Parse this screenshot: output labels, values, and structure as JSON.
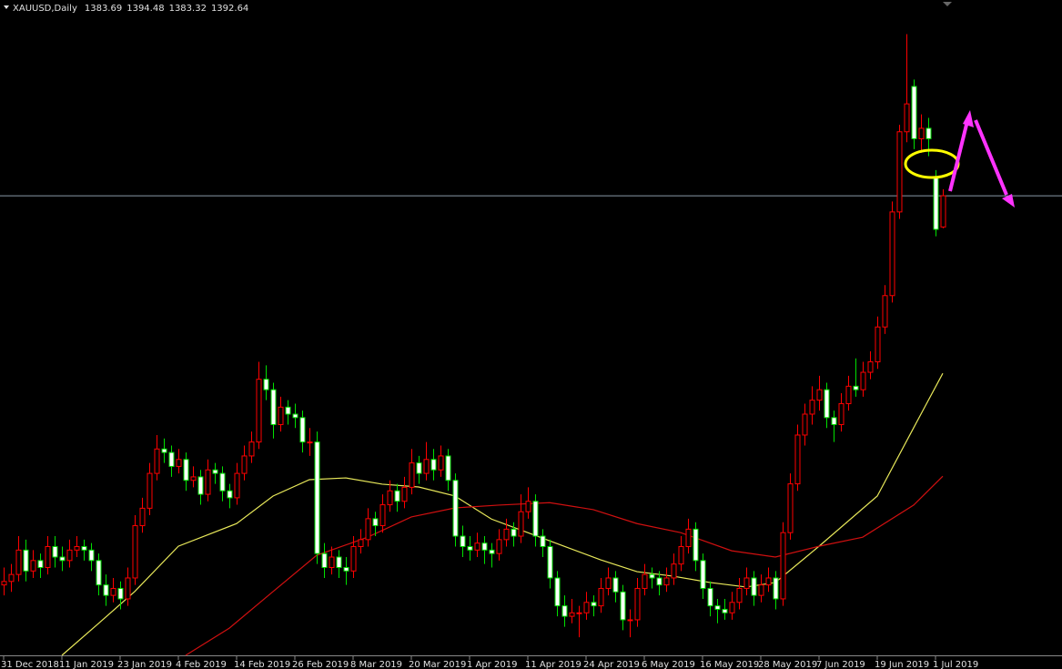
{
  "chart_data": {
    "type": "candlestick",
    "title": "XAUUSD,Daily",
    "candles": [
      [
        1281,
        1286,
        1278,
        1282
      ],
      [
        1282,
        1287,
        1279,
        1284
      ],
      [
        1284,
        1295,
        1282,
        1291
      ],
      [
        1291,
        1294,
        1282,
        1285
      ],
      [
        1285,
        1291,
        1283,
        1288
      ],
      [
        1288,
        1290,
        1283,
        1286
      ],
      [
        1286,
        1295,
        1284,
        1292
      ],
      [
        1292,
        1295,
        1286,
        1289
      ],
      [
        1289,
        1292,
        1285,
        1288
      ],
      [
        1288,
        1294,
        1286,
        1291
      ],
      [
        1291,
        1295,
        1289,
        1292
      ],
      [
        1292,
        1294,
        1288,
        1291
      ],
      [
        1291,
        1293,
        1285,
        1288
      ],
      [
        1288,
        1290,
        1278,
        1281
      ],
      [
        1281,
        1284,
        1275,
        1278
      ],
      [
        1278,
        1283,
        1276,
        1280
      ],
      [
        1280,
        1282,
        1274,
        1277
      ],
      [
        1277,
        1286,
        1275,
        1283
      ],
      [
        1283,
        1301,
        1281,
        1298
      ],
      [
        1298,
        1306,
        1296,
        1303
      ],
      [
        1303,
        1316,
        1301,
        1313
      ],
      [
        1313,
        1324,
        1311,
        1320
      ],
      [
        1320,
        1323,
        1316,
        1319
      ],
      [
        1319,
        1321,
        1312,
        1315
      ],
      [
        1315,
        1320,
        1313,
        1317
      ],
      [
        1317,
        1319,
        1308,
        1311
      ],
      [
        1311,
        1315,
        1309,
        1312
      ],
      [
        1312,
        1314,
        1304,
        1307
      ],
      [
        1307,
        1317,
        1305,
        1314
      ],
      [
        1314,
        1316,
        1310,
        1313
      ],
      [
        1313,
        1315,
        1305,
        1308
      ],
      [
        1308,
        1310,
        1303,
        1306
      ],
      [
        1306,
        1316,
        1304,
        1313
      ],
      [
        1313,
        1321,
        1311,
        1318
      ],
      [
        1318,
        1325,
        1316,
        1322
      ],
      [
        1322,
        1345,
        1320,
        1340
      ],
      [
        1340,
        1344,
        1334,
        1337
      ],
      [
        1337,
        1339,
        1323,
        1327
      ],
      [
        1327,
        1335,
        1325,
        1332
      ],
      [
        1332,
        1334,
        1327,
        1330
      ],
      [
        1330,
        1333,
        1326,
        1329
      ],
      [
        1329,
        1331,
        1319,
        1322
      ],
      [
        1322,
        1326,
        1318,
        1322
      ],
      [
        1322,
        1325,
        1287,
        1290
      ],
      [
        1290,
        1293,
        1283,
        1286
      ],
      [
        1286,
        1292,
        1284,
        1289
      ],
      [
        1289,
        1291,
        1283,
        1286
      ],
      [
        1286,
        1289,
        1281,
        1285
      ],
      [
        1285,
        1295,
        1283,
        1292
      ],
      [
        1292,
        1297,
        1290,
        1294
      ],
      [
        1294,
        1303,
        1292,
        1300
      ],
      [
        1300,
        1302,
        1295,
        1298
      ],
      [
        1298,
        1307,
        1296,
        1304
      ],
      [
        1304,
        1311,
        1302,
        1308
      ],
      [
        1308,
        1310,
        1302,
        1305
      ],
      [
        1305,
        1312,
        1303,
        1309
      ],
      [
        1309,
        1320,
        1307,
        1316
      ],
      [
        1316,
        1318,
        1310,
        1313
      ],
      [
        1313,
        1322,
        1311,
        1317
      ],
      [
        1317,
        1320,
        1311,
        1314
      ],
      [
        1314,
        1321,
        1312,
        1318
      ],
      [
        1318,
        1320,
        1308,
        1311
      ],
      [
        1311,
        1313,
        1292,
        1295
      ],
      [
        1295,
        1298,
        1289,
        1292
      ],
      [
        1292,
        1295,
        1288,
        1291
      ],
      [
        1291,
        1296,
        1289,
        1293
      ],
      [
        1293,
        1295,
        1287,
        1291
      ],
      [
        1291,
        1293,
        1286,
        1290
      ],
      [
        1290,
        1297,
        1288,
        1294
      ],
      [
        1294,
        1300,
        1292,
        1297
      ],
      [
        1297,
        1299,
        1292,
        1295
      ],
      [
        1295,
        1307,
        1293,
        1302
      ],
      [
        1302,
        1309,
        1300,
        1305
      ],
      [
        1305,
        1307,
        1292,
        1295
      ],
      [
        1295,
        1297,
        1289,
        1292
      ],
      [
        1292,
        1294,
        1280,
        1283
      ],
      [
        1283,
        1285,
        1272,
        1275
      ],
      [
        1275,
        1278,
        1269,
        1272
      ],
      [
        1272,
        1277,
        1270,
        1273
      ],
      [
        1273,
        1275,
        1266,
        1273
      ],
      [
        1273,
        1279,
        1271,
        1276
      ],
      [
        1276,
        1278,
        1272,
        1275
      ],
      [
        1275,
        1283,
        1273,
        1280
      ],
      [
        1280,
        1286,
        1278,
        1283
      ],
      [
        1283,
        1285,
        1276,
        1279
      ],
      [
        1279,
        1281,
        1268,
        1271
      ],
      [
        1271,
        1274,
        1266,
        1271
      ],
      [
        1271,
        1283,
        1269,
        1280
      ],
      [
        1280,
        1287,
        1278,
        1284
      ],
      [
        1284,
        1286,
        1280,
        1283
      ],
      [
        1283,
        1285,
        1278,
        1281
      ],
      [
        1281,
        1286,
        1279,
        1283
      ],
      [
        1283,
        1290,
        1281,
        1287
      ],
      [
        1287,
        1295,
        1285,
        1292
      ],
      [
        1292,
        1300,
        1290,
        1297
      ],
      [
        1297,
        1299,
        1285,
        1288
      ],
      [
        1288,
        1290,
        1277,
        1280
      ],
      [
        1280,
        1282,
        1272,
        1275
      ],
      [
        1275,
        1277,
        1270,
        1274
      ],
      [
        1274,
        1277,
        1271,
        1273
      ],
      [
        1273,
        1279,
        1271,
        1276
      ],
      [
        1276,
        1283,
        1274,
        1280
      ],
      [
        1280,
        1286,
        1278,
        1283
      ],
      [
        1283,
        1285,
        1275,
        1278
      ],
      [
        1278,
        1284,
        1276,
        1281
      ],
      [
        1281,
        1286,
        1279,
        1283
      ],
      [
        1283,
        1285,
        1274,
        1277
      ],
      [
        1277,
        1299,
        1275,
        1296
      ],
      [
        1296,
        1313,
        1294,
        1310
      ],
      [
        1310,
        1327,
        1308,
        1324
      ],
      [
        1324,
        1333,
        1321,
        1330
      ],
      [
        1330,
        1338,
        1327,
        1334
      ],
      [
        1334,
        1341,
        1331,
        1337
      ],
      [
        1337,
        1339,
        1326,
        1329
      ],
      [
        1329,
        1331,
        1322,
        1327
      ],
      [
        1327,
        1336,
        1325,
        1333
      ],
      [
        1333,
        1341,
        1331,
        1338
      ],
      [
        1338,
        1346,
        1335,
        1337
      ],
      [
        1337,
        1345,
        1335,
        1342
      ],
      [
        1342,
        1348,
        1340,
        1345
      ],
      [
        1345,
        1358,
        1343,
        1355
      ],
      [
        1355,
        1367,
        1353,
        1364
      ],
      [
        1364,
        1391,
        1362,
        1388
      ],
      [
        1388,
        1413,
        1386,
        1411
      ],
      [
        1411,
        1439,
        1408,
        1419
      ],
      [
        1424,
        1426,
        1406,
        1409
      ],
      [
        1409,
        1416,
        1405,
        1412
      ],
      [
        1412,
        1415,
        1404,
        1409
      ],
      [
        1398,
        1400,
        1381,
        1383
      ],
      [
        1383.69,
        1394.48,
        1383.32,
        1392.64
      ]
    ],
    "bull_color": "#ff0000",
    "bear_color": "#00e000",
    "bear_fill": "#ffffff",
    "price_line_color": "#8a9aa8",
    "series": [
      {
        "color": "#e8e85a",
        "x": [
          8,
          13,
          18,
          24,
          32,
          37,
          42,
          47,
          52,
          57,
          62,
          67,
          72,
          77,
          82,
          87,
          92,
          97,
          102,
          106,
          112,
          120,
          125,
          129
        ],
        "values": [
          1260.8,
          1269.9,
          1279.1,
          1292.1,
          1298.6,
          1306.5,
          1311.2,
          1311.7,
          1309.9,
          1309.1,
          1306.5,
          1299.9,
          1296.0,
          1292.1,
          1288.2,
          1284.8,
          1283.5,
          1281.7,
          1280.4,
          1281.7,
          1292.1,
          1306.5,
          1326.1,
          1341.7
        ]
      },
      {
        "color": "#d01010",
        "x": [
          25,
          31,
          37,
          43,
          50,
          56,
          62,
          68,
          75,
          81,
          87,
          93,
          100,
          106,
          112,
          118,
          125,
          129
        ],
        "values": [
          1260.8,
          1268.6,
          1279.1,
          1289.5,
          1294.7,
          1300.5,
          1303.1,
          1303.9,
          1304.6,
          1302.6,
          1298.6,
          1296.0,
          1290.8,
          1289.0,
          1292.1,
          1294.7,
          1303.9,
          1312.2
        ]
      }
    ],
    "ylim": [
      1260.8,
      1448.8
    ],
    "xticks": [
      {
        "value": 0,
        "label": "31 Dec 2018"
      },
      {
        "value": 8,
        "label": "11 Jan 2019"
      },
      {
        "value": 16,
        "label": "23 Jan 2019"
      },
      {
        "value": 24,
        "label": "4 Feb 2019"
      },
      {
        "value": 32,
        "label": "14 Feb 2019"
      },
      {
        "value": 40,
        "label": "26 Feb 2019"
      },
      {
        "value": 48,
        "label": "8 Mar 2019"
      },
      {
        "value": 56,
        "label": "20 Mar 2019"
      },
      {
        "value": 64,
        "label": "1 Apr 2019"
      },
      {
        "value": 72,
        "label": "11 Apr 2019"
      },
      {
        "value": 80,
        "label": "24 Apr 2019"
      },
      {
        "value": 88,
        "label": "6 May 2019"
      },
      {
        "value": 96,
        "label": "16 May 2019"
      },
      {
        "value": 104,
        "label": "28 May 2019"
      },
      {
        "value": 112,
        "label": "7 Jun 2019"
      },
      {
        "value": 120,
        "label": "19 Jun 2019"
      },
      {
        "value": 128,
        "label": "1 Jul 2019"
      }
    ]
  }
}
